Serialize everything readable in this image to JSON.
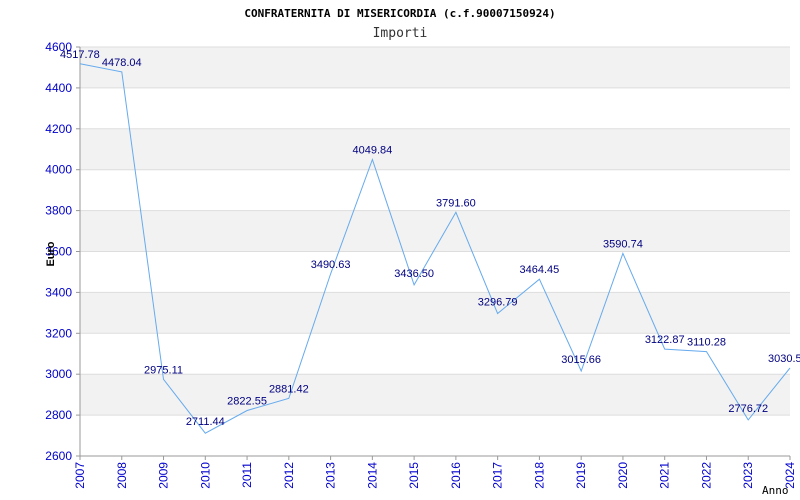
{
  "chart_data": {
    "type": "line",
    "title": "CONFRATERNITA DI MISERICORDIA (c.f.90007150924)",
    "subtitle": "Importi",
    "ylabel": "Euro",
    "xlabel": "Anno",
    "ylim": [
      2600,
      4600
    ],
    "yticks": [
      2600,
      2800,
      3000,
      3200,
      3400,
      3600,
      3800,
      4000,
      4200,
      4400,
      4600
    ],
    "categories": [
      "2007",
      "2008",
      "2009",
      "2010",
      "2011",
      "2012",
      "2013",
      "2014",
      "2015",
      "2016",
      "2017",
      "2018",
      "2019",
      "2020",
      "2021",
      "2022",
      "2023",
      "2024"
    ],
    "values": [
      4517.78,
      4478.04,
      2975.11,
      2711.44,
      2822.55,
      2881.42,
      3490.63,
      4049.84,
      3436.5,
      3791.6,
      3296.79,
      3464.45,
      3015.66,
      3590.74,
      3122.87,
      3110.28,
      2776.72,
      3030.5
    ],
    "labels": [
      "4517.78",
      "4478.04",
      "2975.11",
      "2711.44",
      "2822.55",
      "2881.42",
      "3490.63",
      "4049.84",
      "3436.50",
      "3791.60",
      "3296.79",
      "3464.45",
      "3015.66",
      "3590.74",
      "3122.87",
      "3110.28",
      "2776.72",
      "3030.5"
    ],
    "grid": true,
    "colors": {
      "line": "#66aaee",
      "band": "#f2f2f2",
      "grid": "#dddddd",
      "tick": "#0000cc",
      "label": "#000080"
    }
  }
}
